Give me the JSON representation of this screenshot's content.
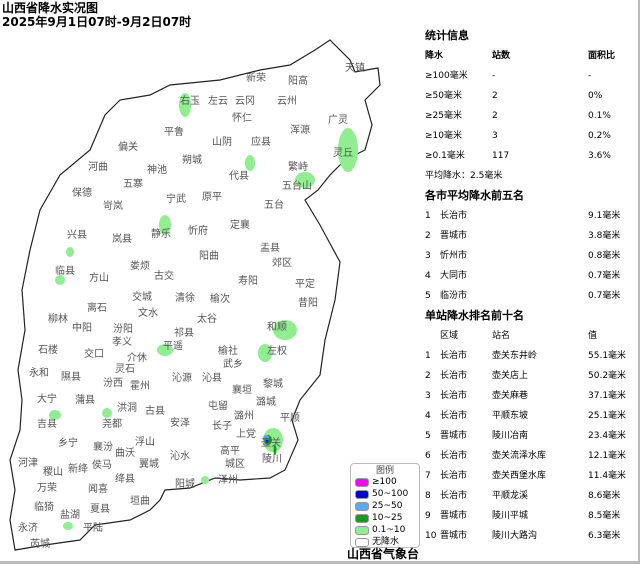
{
  "title": "山西省降水实况图",
  "subtitle": "2025年9月1日07时-9月2日07时",
  "organization": "山西省气象台",
  "stats": {
    "heading": "统计信息",
    "columns": [
      "降水",
      "站数",
      "面积比"
    ],
    "rows": [
      [
        "≥100毫米",
        "-",
        "-"
      ],
      [
        "≥50毫米",
        "2",
        "0%"
      ],
      [
        "≥25毫米",
        "2",
        "0.1%"
      ],
      [
        "≥10毫米",
        "3",
        "0.2%"
      ],
      [
        "≥0.1毫米",
        "117",
        "3.6%"
      ]
    ],
    "average": "平均降水：2.5毫米"
  },
  "city_top5": {
    "heading": "各市平均降水前五名",
    "rows": [
      [
        "1",
        "长治市",
        "9.1毫米"
      ],
      [
        "2",
        "晋城市",
        "3.8毫米"
      ],
      [
        "3",
        "忻州市",
        "0.8毫米"
      ],
      [
        "4",
        "大同市",
        "0.7毫米"
      ],
      [
        "5",
        "临汾市",
        "0.7毫米"
      ]
    ]
  },
  "station_top10": {
    "heading": "单站降水排名前十名",
    "columns": [
      "区域",
      "站名",
      "值"
    ],
    "rows": [
      [
        "1",
        "长治市",
        "壶关东井岭",
        "55.1毫米"
      ],
      [
        "2",
        "长治市",
        "壶关店上",
        "50.2毫米"
      ],
      [
        "3",
        "长治市",
        "壶关麻巷",
        "37.1毫米"
      ],
      [
        "4",
        "长治市",
        "平顺东坡",
        "25.1毫米"
      ],
      [
        "5",
        "晋城市",
        "陵川冶南",
        "23.4毫米"
      ],
      [
        "6",
        "长治市",
        "壶关流泽水库",
        "12.1毫米"
      ],
      [
        "7",
        "长治市",
        "壶关西堡水库",
        "11.4毫米"
      ],
      [
        "8",
        "长治市",
        "平顺龙溪",
        "8.6毫米"
      ],
      [
        "9",
        "晋城市",
        "陵川平城",
        "8.5毫米"
      ],
      [
        "10",
        "晋城市",
        "陵川大路沟",
        "6.3毫米"
      ]
    ]
  },
  "legend": {
    "title": "图例",
    "items": [
      {
        "label": "≥100",
        "color": "#ff00ff"
      },
      {
        "label": "50~100",
        "color": "#0000e0"
      },
      {
        "label": "25~50",
        "color": "#5aaaf0"
      },
      {
        "label": "10~25",
        "color": "#12a012"
      },
      {
        "label": "0.1~10",
        "color": "#90ee90"
      },
      {
        "label": "无降水",
        "color": "#ffffff"
      }
    ]
  },
  "counties": [
    "右玉",
    "左云",
    "云冈",
    "新荣",
    "阳高",
    "天镇",
    "云州",
    "广灵",
    "平鲁",
    "怀仁",
    "山阴",
    "应县",
    "浑源",
    "灵丘",
    "偏关",
    "神池",
    "朔城",
    "代县",
    "繁峙",
    "五台山",
    "河曲",
    "五寨",
    "宁武",
    "原平",
    "五台",
    "保德",
    "岢岚",
    "静乐",
    "忻府",
    "定襄",
    "兴县",
    "岚县",
    "盂县",
    "阳曲",
    "临县",
    "方山",
    "娄烦",
    "古交",
    "寿阳",
    "平定",
    "郊区",
    "交城",
    "清徐",
    "榆次",
    "昔阳",
    "离石",
    "文水",
    "太谷",
    "柳林",
    "中阳",
    "汾阳",
    "祁县",
    "和顺",
    "孝义",
    "平遥",
    "榆社",
    "左权",
    "石楼",
    "交口",
    "介休",
    "灵石",
    "武乡",
    "永和",
    "隰县",
    "沁源",
    "沁县",
    "黎城",
    "襄垣",
    "汾西",
    "霍州",
    "大宁",
    "蒲县",
    "洪洞",
    "古县",
    "屯留",
    "潞州",
    "潞城",
    "平顺",
    "吉县",
    "尧都",
    "安泽",
    "长子",
    "上党",
    "壶关",
    "乡宁",
    "襄汾",
    "浮山",
    "高平",
    "陵川",
    "沁水",
    "翼城",
    "曲沃",
    "河津",
    "稷山",
    "新绛",
    "侯马",
    "城区",
    "泽州",
    "绛县",
    "阳城",
    "万荣",
    "闻喜",
    "垣曲",
    "临猗",
    "盐湖",
    "夏县",
    "永济",
    "平陆",
    "芮城"
  ]
}
